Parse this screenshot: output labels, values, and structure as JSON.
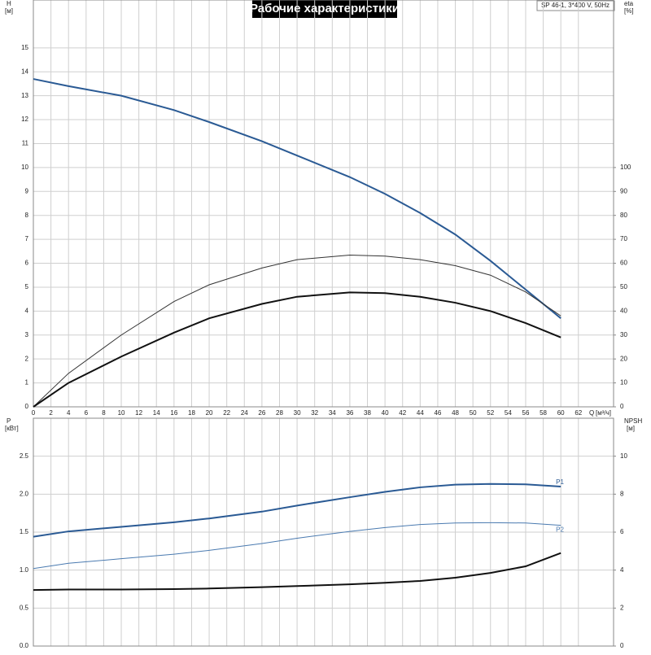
{
  "chart_data": [
    {
      "type": "line",
      "title": "Рабочие характеристики",
      "annotation": "SP 46-1, 3*400 V, 50Hz",
      "xlabel": "Q",
      "xunit": "[м³/ч]",
      "ylabel": "H",
      "yunit": "[м]",
      "y2label": "eta",
      "y2unit": "[%]",
      "x": [
        0,
        4,
        10,
        16,
        20,
        26,
        30,
        36,
        40,
        44,
        48,
        52,
        56,
        60
      ],
      "xlim": [
        0,
        66
      ],
      "xticks": [
        0,
        2,
        4,
        6,
        8,
        10,
        12,
        14,
        16,
        18,
        20,
        22,
        24,
        26,
        28,
        30,
        32,
        34,
        36,
        38,
        40,
        42,
        44,
        46,
        48,
        50,
        52,
        54,
        56,
        58,
        60,
        62
      ],
      "ylim": [
        0,
        17
      ],
      "yticks": [
        0,
        1,
        2,
        3,
        4,
        5,
        6,
        7,
        8,
        9,
        10,
        11,
        12,
        13,
        14,
        15
      ],
      "y2lim": [
        0,
        170
      ],
      "y2ticks": [
        0,
        10,
        20,
        30,
        40,
        50,
        60,
        70,
        80,
        90,
        100
      ],
      "grid": true,
      "xtick_labels": true,
      "series": [
        {
          "color": "#2a5a94",
          "linewidth": 2,
          "values": [
            13.7,
            13.4,
            13.0,
            12.4,
            11.9,
            11.1,
            10.5,
            9.6,
            8.9,
            8.1,
            7.2,
            6.1,
            4.9,
            3.7
          ]
        },
        {
          "color": "#333333",
          "linewidth": 1,
          "axis": "y2",
          "values": [
            0,
            14,
            30,
            44,
            51,
            58,
            61.5,
            63.4,
            63,
            61.5,
            59,
            55,
            48,
            38
          ]
        },
        {
          "color": "#111111",
          "linewidth": 2,
          "axis": "y2",
          "values": [
            0,
            10,
            21,
            31,
            37,
            43,
            46,
            47.8,
            47.5,
            46,
            43.5,
            40,
            35,
            29
          ]
        }
      ]
    },
    {
      "type": "line",
      "ylabel": "P",
      "yunit": "[кВт]",
      "y2label": "NPSH",
      "y2unit": "[м]",
      "x": [
        0,
        4,
        10,
        16,
        20,
        26,
        30,
        36,
        40,
        44,
        48,
        52,
        56,
        60
      ],
      "xlim": [
        0,
        66
      ],
      "xticks": [
        0,
        2,
        4,
        6,
        8,
        10,
        12,
        14,
        16,
        18,
        20,
        22,
        24,
        26,
        28,
        30,
        32,
        34,
        36,
        38,
        40,
        42,
        44,
        46,
        48,
        50,
        52,
        54,
        56,
        58,
        60,
        62
      ],
      "ylim": [
        0,
        3
      ],
      "yticks": [
        {
          "value": 0,
          "label": "0.0"
        },
        0.5,
        {
          "value": 1,
          "label": "1.0"
        },
        1.5,
        {
          "value": 2,
          "label": "2.0"
        },
        2.5
      ],
      "y2lim": [
        0,
        12
      ],
      "y2ticks": [
        0,
        2,
        4,
        6,
        8,
        10
      ],
      "grid": true,
      "xtick_labels": false,
      "series": [
        {
          "name": "P1",
          "color": "#2a5a94",
          "linewidth": 2,
          "values": [
            1.44,
            1.51,
            1.57,
            1.63,
            1.68,
            1.77,
            1.85,
            1.96,
            2.03,
            2.09,
            2.125,
            2.135,
            2.13,
            2.1
          ]
        },
        {
          "name": "P2",
          "color": "#4a7ab0",
          "linewidth": 1,
          "values": [
            1.02,
            1.09,
            1.15,
            1.21,
            1.26,
            1.35,
            1.42,
            1.51,
            1.56,
            1.6,
            1.62,
            1.625,
            1.62,
            1.59
          ]
        },
        {
          "color": "#111111",
          "linewidth": 2,
          "axis": "y2",
          "values": [
            2.95,
            2.98,
            2.98,
            3.0,
            3.03,
            3.1,
            3.16,
            3.25,
            3.33,
            3.43,
            3.6,
            3.85,
            4.2,
            4.9
          ]
        }
      ]
    }
  ]
}
